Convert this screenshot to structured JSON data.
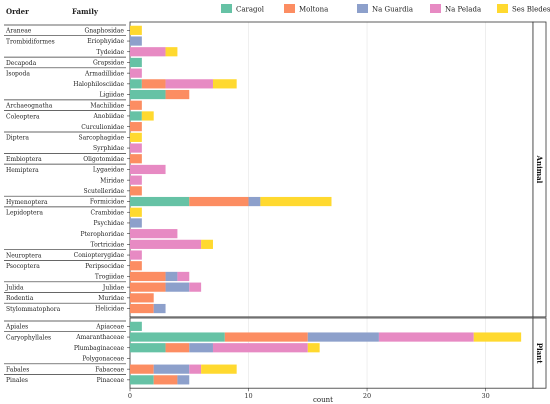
{
  "chart_data": {
    "type": "bar",
    "orientation": "horizontal",
    "stacked": true,
    "headers": {
      "order": "Order",
      "family": "Family"
    },
    "xlabel": "count",
    "xlim": [
      0,
      34
    ],
    "x_ticks": [
      0,
      10,
      20,
      30
    ],
    "legend_position": "top",
    "series": [
      {
        "name": "Caragol",
        "color": "#66c2a5"
      },
      {
        "name": "Moltona",
        "color": "#fc8d62"
      },
      {
        "name": "Na Guardia",
        "color": "#8da0cb"
      },
      {
        "name": "Na Pelada",
        "color": "#e78ac3"
      },
      {
        "name": "Ses Bledes",
        "color": "#ffd92f"
      }
    ],
    "panels": [
      {
        "label": "Animal",
        "groups": [
          {
            "order": "Araneae",
            "rows": [
              {
                "family": "Gnaphosidae",
                "values": [
                  0,
                  0,
                  0,
                  0,
                  1
                ]
              }
            ]
          },
          {
            "order": "Trombidiformes",
            "rows": [
              {
                "family": "Eriophyidae",
                "values": [
                  0,
                  0,
                  1,
                  0,
                  0
                ]
              },
              {
                "family": "Tydeidae",
                "values": [
                  0,
                  0,
                  0,
                  3,
                  1
                ]
              }
            ]
          },
          {
            "order": "Decapoda",
            "rows": [
              {
                "family": "Grapsidae",
                "values": [
                  1,
                  0,
                  0,
                  0,
                  0
                ]
              }
            ]
          },
          {
            "order": "Isopoda",
            "rows": [
              {
                "family": "Armadillidae",
                "values": [
                  0,
                  0,
                  0,
                  1,
                  0
                ]
              },
              {
                "family": "Halophilosciidae",
                "values": [
                  1,
                  2,
                  0,
                  4,
                  2
                ]
              },
              {
                "family": "Ligiidae",
                "values": [
                  3,
                  2,
                  0,
                  0,
                  0
                ]
              }
            ]
          },
          {
            "order": "Archaeognatha",
            "rows": [
              {
                "family": "Machilidae",
                "values": [
                  0,
                  1,
                  0,
                  0,
                  0
                ]
              }
            ]
          },
          {
            "order": "Coleoptera",
            "rows": [
              {
                "family": "Anobiidae",
                "values": [
                  1,
                  0,
                  0,
                  0,
                  1
                ]
              },
              {
                "family": "Curculionidae",
                "values": [
                  0,
                  1,
                  0,
                  0,
                  0
                ]
              }
            ]
          },
          {
            "order": "Diptera",
            "rows": [
              {
                "family": "Sarcophagidae",
                "values": [
                  0,
                  0,
                  0,
                  0,
                  1
                ]
              },
              {
                "family": "Syrphidae",
                "values": [
                  0,
                  0,
                  0,
                  1,
                  0
                ]
              }
            ]
          },
          {
            "order": "Embioptera",
            "rows": [
              {
                "family": "Oligotomidae",
                "values": [
                  0,
                  1,
                  0,
                  0,
                  0
                ]
              }
            ]
          },
          {
            "order": "Hemiptera",
            "rows": [
              {
                "family": "Lygaeidae",
                "values": [
                  0,
                  0,
                  0,
                  3,
                  0
                ]
              },
              {
                "family": "Miridae",
                "values": [
                  0,
                  0,
                  0,
                  1,
                  0
                ]
              },
              {
                "family": "Scutelleridae",
                "values": [
                  0,
                  1,
                  0,
                  0,
                  0
                ]
              }
            ]
          },
          {
            "order": "Hymenoptera",
            "rows": [
              {
                "family": "Formicidae",
                "values": [
                  5,
                  5,
                  1,
                  0,
                  6
                ]
              }
            ]
          },
          {
            "order": "Lepidoptera",
            "rows": [
              {
                "family": "Crambidae",
                "values": [
                  0,
                  0,
                  0,
                  0,
                  1
                ]
              },
              {
                "family": "Psychidae",
                "values": [
                  0,
                  0,
                  1,
                  0,
                  0
                ]
              },
              {
                "family": "Pterophoridae",
                "values": [
                  0,
                  0,
                  0,
                  4,
                  0
                ]
              },
              {
                "family": "Tortricidae",
                "values": [
                  0,
                  0,
                  0,
                  6,
                  1
                ]
              }
            ]
          },
          {
            "order": "Neuroptera",
            "rows": [
              {
                "family": "Coniopterygidae",
                "values": [
                  0,
                  0,
                  0,
                  1,
                  0
                ]
              }
            ]
          },
          {
            "order": "Psocoptera",
            "rows": [
              {
                "family": "Peripsocidae",
                "values": [
                  0,
                  1,
                  0,
                  0,
                  0
                ]
              },
              {
                "family": "Trogiidae",
                "values": [
                  0,
                  3,
                  1,
                  1,
                  0
                ]
              }
            ]
          },
          {
            "order": "Julida",
            "rows": [
              {
                "family": "Julidae",
                "values": [
                  0,
                  3,
                  2,
                  1,
                  0
                ]
              }
            ]
          },
          {
            "order": "Rodentia",
            "rows": [
              {
                "family": "Muridae",
                "values": [
                  0,
                  2,
                  0,
                  0,
                  0
                ]
              }
            ]
          },
          {
            "order": "Stylommatophora",
            "rows": [
              {
                "family": "Helicidae",
                "values": [
                  0,
                  2,
                  1,
                  0,
                  0
                ]
              }
            ]
          }
        ]
      },
      {
        "label": "Plant",
        "groups": [
          {
            "order": "Apiales",
            "rows": [
              {
                "family": "Apiaceae",
                "values": [
                  1,
                  0,
                  0,
                  0,
                  0
                ]
              }
            ]
          },
          {
            "order": "Caryophyllales",
            "rows": [
              {
                "family": "Amaranthaceae",
                "values": [
                  8,
                  7,
                  6,
                  8,
                  4
                ]
              },
              {
                "family": "Plumbaginaceae",
                "values": [
                  3,
                  2,
                  2,
                  8,
                  1
                ]
              },
              {
                "family": "Polygonaceae",
                "values": [
                  0,
                  0,
                  0,
                  0,
                  0
                ]
              }
            ]
          },
          {
            "order": "Fabales",
            "rows": [
              {
                "family": "Fabaceae",
                "values": [
                  0,
                  2,
                  3,
                  1,
                  3
                ]
              }
            ]
          },
          {
            "order": "Pinales",
            "rows": [
              {
                "family": "Pinaceae",
                "values": [
                  2,
                  2,
                  1,
                  0,
                  0
                ]
              }
            ]
          }
        ]
      }
    ]
  }
}
